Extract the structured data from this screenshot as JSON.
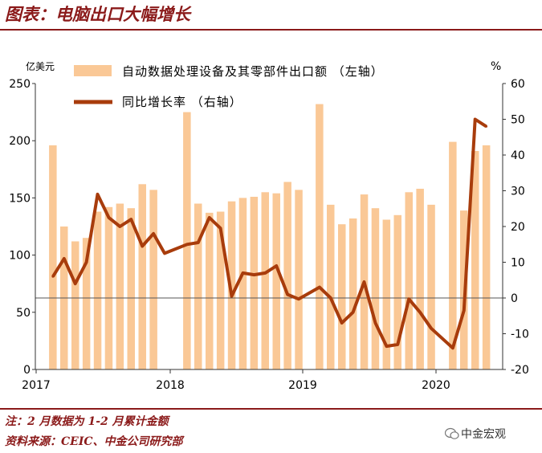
{
  "header": {
    "title": "图表：电脑出口大幅增长"
  },
  "footer": {
    "note": "注：2 月数据为 1-2 月累计金额",
    "source": "资料来源：CEIC、中金公司研究部",
    "brand": "中金宏观"
  },
  "colors": {
    "bar": "#FAC896",
    "line": "#A83C0C",
    "accent": "#8B1A1A",
    "zero": "#555555"
  },
  "chart_data": {
    "type": "bar+line",
    "left_unit": "亿美元",
    "right_unit": "%",
    "ylim_left": [
      0,
      250
    ],
    "ylim_right": [
      -20,
      60
    ],
    "left_ticks": [
      0,
      50,
      100,
      150,
      200,
      250
    ],
    "right_ticks": [
      -20,
      -10,
      0,
      10,
      20,
      30,
      40,
      50,
      60
    ],
    "x_tick_labels": [
      "2017",
      "2018",
      "2019",
      "2020"
    ],
    "legend": {
      "bar": "自动数据处理设备及其零部件出口额 （左轴）",
      "line": "同比增长率 （右轴）"
    },
    "months": [
      "2017-02",
      "2017-03",
      "2017-04",
      "2017-05",
      "2017-06",
      "2017-07",
      "2017-08",
      "2017-09",
      "2017-10",
      "2017-11",
      "2017-12",
      "2018-02",
      "2018-03",
      "2018-04",
      "2018-05",
      "2018-06",
      "2018-07",
      "2018-08",
      "2018-09",
      "2018-10",
      "2018-11",
      "2018-12",
      "2019-02",
      "2019-03",
      "2019-04",
      "2019-05",
      "2019-06",
      "2019-07",
      "2019-08",
      "2019-09",
      "2019-10",
      "2019-11",
      "2019-12",
      "2020-02",
      "2020-03",
      "2020-04",
      "2020-05"
    ],
    "series": [
      {
        "name": "自动数据处理设备及其零部件出口额",
        "axis": "left",
        "kind": "bar",
        "values": [
          196,
          125,
          112,
          115,
          138,
          142,
          145,
          141,
          162,
          157,
          null,
          225,
          145,
          137,
          138,
          147,
          150,
          151,
          155,
          154,
          164,
          157,
          232,
          144,
          127,
          132,
          153,
          141,
          131,
          135,
          155,
          158,
          144,
          199,
          139,
          191,
          196
        ]
      },
      {
        "name": "同比增长率",
        "axis": "right",
        "kind": "line",
        "values": [
          6,
          11,
          4,
          10,
          29,
          22.5,
          20,
          22,
          14.5,
          18,
          12.5,
          15,
          15.5,
          22.5,
          19.5,
          0.5,
          7,
          6.5,
          7,
          9,
          1,
          -0.3,
          3,
          0,
          -7,
          -4,
          4.5,
          -7,
          -13.5,
          -13,
          -0.3,
          -4,
          -8.5,
          -14,
          -3.5,
          50,
          48
        ]
      }
    ]
  }
}
